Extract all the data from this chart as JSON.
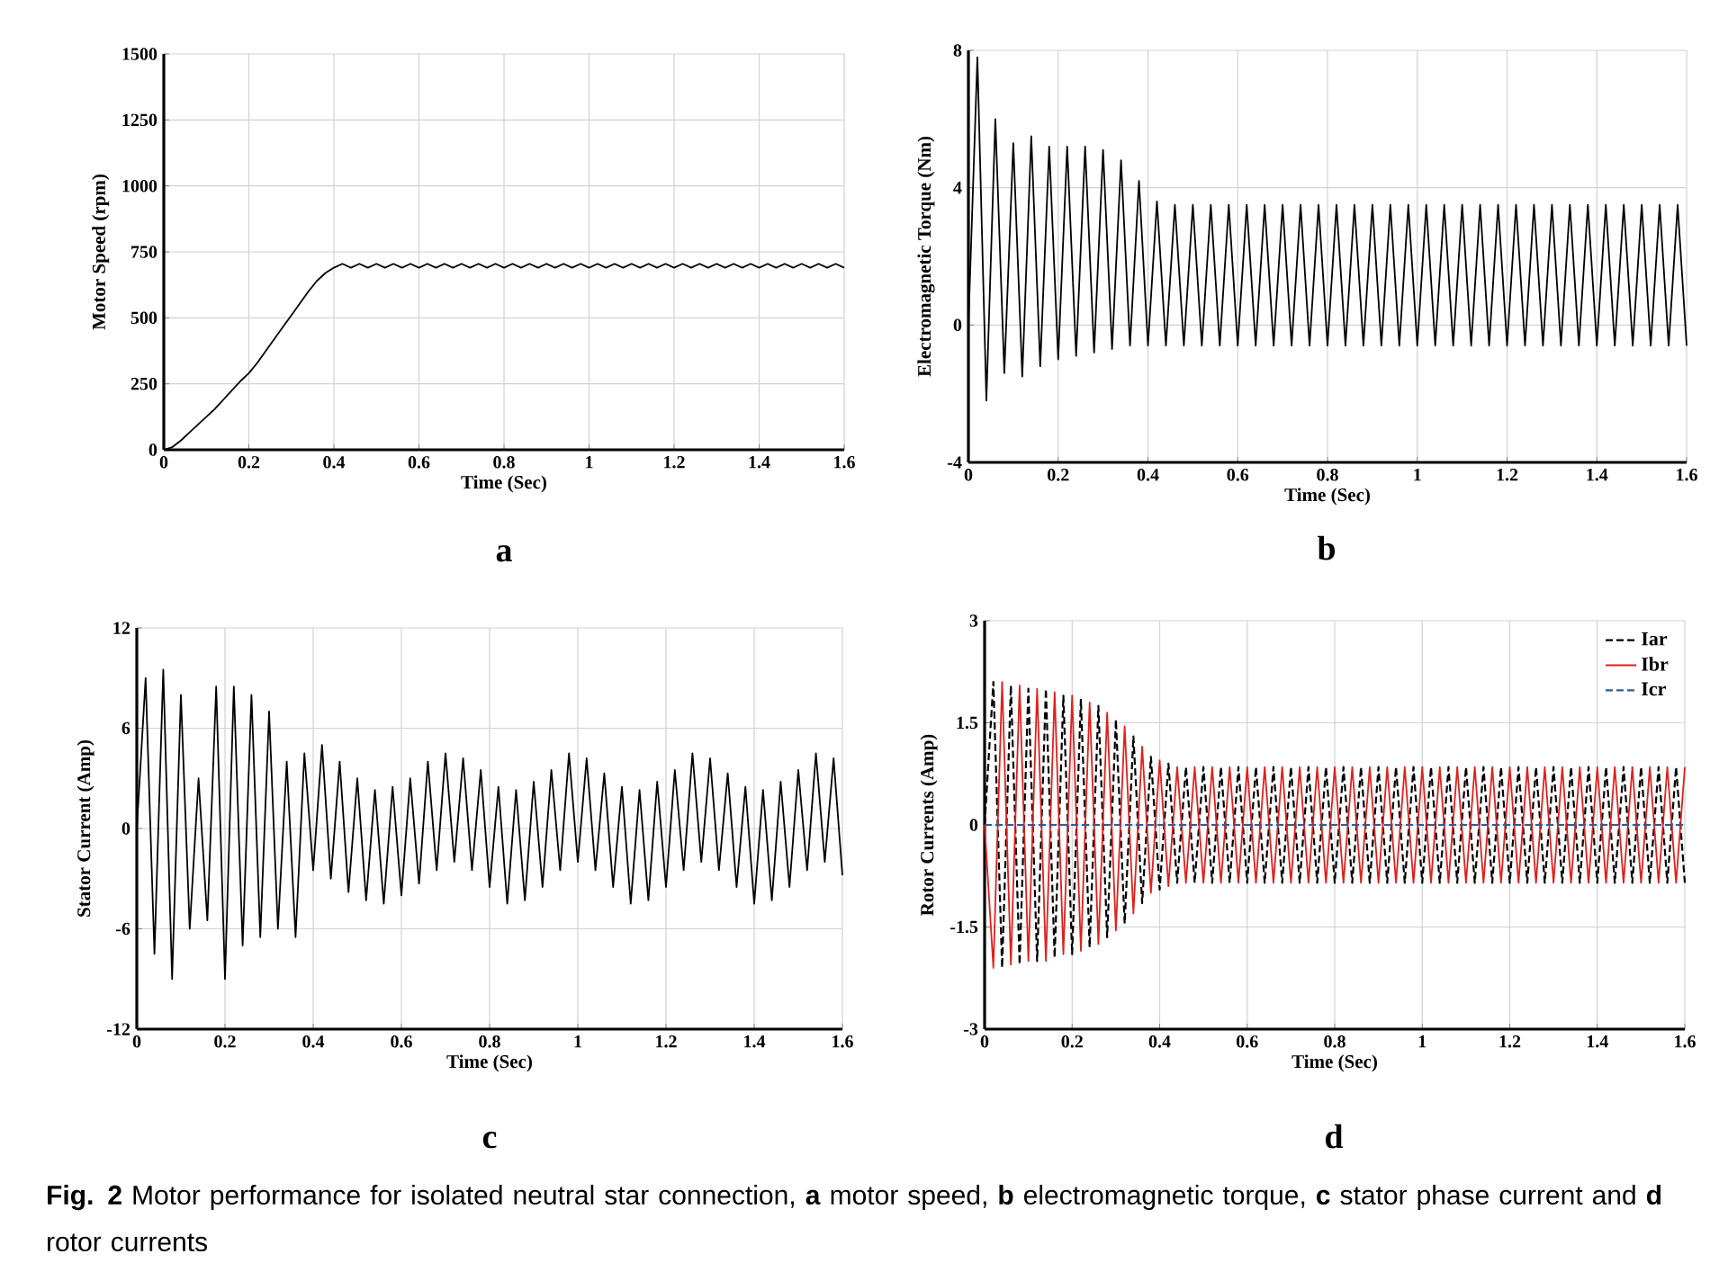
{
  "chart_data": [
    {
      "type": "line",
      "title": "a",
      "xlabel": "Time (Sec)",
      "ylabel": "Motor Speed (rpm)",
      "grid": true,
      "xlim": [
        0,
        1.6
      ],
      "ylim": [
        0,
        1500
      ],
      "xticks": [
        0,
        0.2,
        0.4,
        0.6,
        0.8,
        1,
        1.2,
        1.4,
        1.6
      ],
      "yticks": [
        0,
        250,
        500,
        750,
        1000,
        1250,
        1500
      ],
      "annotations": [
        "**Fig. 2**  Motor performance for isolated neutral star connection, **a** motor speed, **b** electromagnetic torque, **c** stator phase current and **d** rotor currents"
      ],
      "x": [
        0,
        0.02,
        0.04,
        0.06,
        0.08,
        0.1,
        0.12,
        0.14,
        0.16,
        0.18,
        0.2,
        0.22,
        0.24,
        0.26,
        0.28,
        0.3,
        0.32,
        0.34,
        0.36,
        0.38,
        0.4,
        0.42,
        0.44,
        0.46,
        0.48,
        0.5,
        0.52,
        0.54,
        0.56,
        0.58,
        0.6,
        0.62,
        0.64,
        0.66,
        0.68,
        0.7,
        0.72,
        0.74,
        0.76,
        0.78,
        0.8,
        0.82,
        0.84,
        0.86,
        0.88,
        0.9,
        0.92,
        0.94,
        0.96,
        0.98,
        1,
        1.02,
        1.04,
        1.06,
        1.08,
        1.1,
        1.12,
        1.14,
        1.16,
        1.18,
        1.2,
        1.22,
        1.24,
        1.26,
        1.28,
        1.3,
        1.32,
        1.34,
        1.36,
        1.38,
        1.4,
        1.42,
        1.44,
        1.46,
        1.48,
        1.5,
        1.52,
        1.54,
        1.56,
        1.58,
        1.6
      ],
      "series": [
        {
          "color": "#000000",
          "line_style": "solid",
          "values": [
            0,
            10,
            35,
            65,
            95,
            125,
            155,
            190,
            225,
            260,
            290,
            330,
            375,
            420,
            465,
            510,
            555,
            600,
            640,
            670,
            690,
            705,
            690,
            705,
            690,
            705,
            690,
            705,
            690,
            705,
            690,
            705,
            690,
            705,
            690,
            705,
            690,
            705,
            690,
            705,
            690,
            705,
            690,
            705,
            690,
            705,
            690,
            705,
            690,
            705,
            690,
            705,
            690,
            705,
            690,
            705,
            690,
            705,
            690,
            705,
            690,
            705,
            690,
            705,
            690,
            705,
            690,
            705,
            690,
            705,
            690,
            705,
            690,
            705,
            690,
            705,
            690,
            705,
            690,
            705,
            690
          ]
        }
      ]
    },
    {
      "type": "line",
      "title": "b",
      "xlabel": "Time (Sec)",
      "ylabel": "Electromagnetic Torque (Nm)",
      "grid": true,
      "xlim": [
        0,
        1.6
      ],
      "ylim": [
        -4,
        8
      ],
      "xticks": [
        0,
        0.2,
        0.4,
        0.6,
        0.8,
        1,
        1.2,
        1.4,
        1.6
      ],
      "yticks": [
        -4,
        0,
        4,
        8
      ],
      "x": [
        0,
        0.02,
        0.04,
        0.06,
        0.08,
        0.1,
        0.12,
        0.14,
        0.16,
        0.18,
        0.2,
        0.22,
        0.24,
        0.26,
        0.28,
        0.3,
        0.32,
        0.34,
        0.36,
        0.38,
        0.4,
        0.42,
        0.44,
        0.46,
        0.48,
        0.5,
        0.52,
        0.54,
        0.56,
        0.58,
        0.6,
        0.62,
        0.64,
        0.66,
        0.68,
        0.7,
        0.72,
        0.74,
        0.76,
        0.78,
        0.8,
        0.82,
        0.84,
        0.86,
        0.88,
        0.9,
        0.92,
        0.94,
        0.96,
        0.98,
        1,
        1.02,
        1.04,
        1.06,
        1.08,
        1.1,
        1.12,
        1.14,
        1.16,
        1.18,
        1.2,
        1.22,
        1.24,
        1.26,
        1.28,
        1.3,
        1.32,
        1.34,
        1.36,
        1.38,
        1.4,
        1.42,
        1.44,
        1.46,
        1.48,
        1.5,
        1.52,
        1.54,
        1.56,
        1.58,
        1.6
      ],
      "series": [
        {
          "color": "#000000",
          "line_style": "solid",
          "values": [
            0,
            7.8,
            -2.2,
            6,
            -1.4,
            5.3,
            -1.5,
            5.5,
            -1.2,
            5.2,
            -1,
            5.2,
            -0.9,
            5.2,
            -0.8,
            5.1,
            -0.7,
            4.8,
            -0.6,
            4.2,
            -0.6,
            3.6,
            -0.6,
            3.5,
            -0.6,
            3.5,
            -0.6,
            3.5,
            -0.6,
            3.5,
            -0.6,
            3.5,
            -0.6,
            3.5,
            -0.6,
            3.5,
            -0.6,
            3.5,
            -0.6,
            3.5,
            -0.6,
            3.5,
            -0.6,
            3.5,
            -0.6,
            3.5,
            -0.6,
            3.5,
            -0.6,
            3.5,
            -0.6,
            3.5,
            -0.6,
            3.5,
            -0.6,
            3.5,
            -0.6,
            3.5,
            -0.6,
            3.5,
            -0.6,
            3.5,
            -0.6,
            3.5,
            -0.6,
            3.5,
            -0.6,
            3.5,
            -0.6,
            3.5,
            -0.6,
            3.5,
            -0.6,
            3.5,
            -0.6,
            3.5,
            -0.6,
            3.5,
            -0.6,
            3.5,
            -0.6
          ]
        }
      ]
    },
    {
      "type": "line",
      "title": "c",
      "xlabel": "Time (Sec)",
      "ylabel": "Stator Current (Amp)",
      "grid": true,
      "xlim": [
        0,
        1.6
      ],
      "ylim": [
        -12,
        12
      ],
      "xticks": [
        0,
        0.2,
        0.4,
        0.6,
        0.8,
        1,
        1.2,
        1.4,
        1.6
      ],
      "yticks": [
        -12,
        -6,
        0,
        6,
        12
      ],
      "x": [
        0,
        0.02,
        0.04,
        0.06,
        0.08,
        0.1,
        0.12,
        0.14,
        0.16,
        0.18,
        0.2,
        0.22,
        0.24,
        0.26,
        0.28,
        0.3,
        0.32,
        0.34,
        0.36,
        0.38,
        0.4,
        0.42,
        0.44,
        0.46,
        0.48,
        0.5,
        0.52,
        0.54,
        0.56,
        0.58,
        0.6,
        0.62,
        0.64,
        0.66,
        0.68,
        0.7,
        0.72,
        0.74,
        0.76,
        0.78,
        0.8,
        0.82,
        0.84,
        0.86,
        0.88,
        0.9,
        0.92,
        0.94,
        0.96,
        0.98,
        1,
        1.02,
        1.04,
        1.06,
        1.08,
        1.1,
        1.12,
        1.14,
        1.16,
        1.18,
        1.2,
        1.22,
        1.24,
        1.26,
        1.28,
        1.3,
        1.32,
        1.34,
        1.36,
        1.38,
        1.4,
        1.42,
        1.44,
        1.46,
        1.48,
        1.5,
        1.52,
        1.54,
        1.56,
        1.58,
        1.6
      ],
      "series": [
        {
          "color": "#000000",
          "line_style": "solid",
          "values": [
            0,
            9,
            -7.5,
            9.5,
            -9,
            8,
            -6,
            3,
            -5.5,
            8.5,
            -9,
            8.5,
            -7,
            8,
            -6.5,
            7,
            -6,
            4,
            -6.5,
            4.5,
            -2.5,
            5,
            -3,
            4,
            -3.8,
            3,
            -4.3,
            2.3,
            -4.5,
            2.5,
            -4,
            3,
            -3.3,
            4,
            -2.5,
            4.5,
            -2,
            4.2,
            -2.5,
            3.5,
            -3.5,
            2.5,
            -4.5,
            2.3,
            -4.3,
            2.8,
            -3.5,
            3.5,
            -2.5,
            4.5,
            -2,
            4.2,
            -2.5,
            3.3,
            -3.5,
            2.5,
            -4.5,
            2.3,
            -4.3,
            2.8,
            -3.5,
            3.5,
            -2.5,
            4.5,
            -2,
            4.2,
            -2.5,
            3.3,
            -3.5,
            2.5,
            -4.5,
            2.3,
            -4.3,
            2.8,
            -3.5,
            3.5,
            -2.5,
            4.5,
            -2,
            4.2,
            -2.8
          ]
        }
      ]
    },
    {
      "type": "line",
      "title": "d",
      "xlabel": "Time (Sec)",
      "ylabel": "Rotor Currents (Amp)",
      "grid": true,
      "legend": "top right",
      "xlim": [
        0,
        1.6
      ],
      "ylim": [
        -3,
        3
      ],
      "xticks": [
        0,
        0.2,
        0.4,
        0.6,
        0.8,
        1,
        1.2,
        1.4,
        1.6
      ],
      "yticks": [
        -3,
        -1.5,
        0,
        1.5,
        3
      ],
      "x": [
        0,
        0.02,
        0.04,
        0.06,
        0.08,
        0.1,
        0.12,
        0.14,
        0.16,
        0.18,
        0.2,
        0.22,
        0.24,
        0.26,
        0.28,
        0.3,
        0.32,
        0.34,
        0.36,
        0.38,
        0.4,
        0.42,
        0.44,
        0.46,
        0.48,
        0.5,
        0.52,
        0.54,
        0.56,
        0.58,
        0.6,
        0.62,
        0.64,
        0.66,
        0.68,
        0.7,
        0.72,
        0.74,
        0.76,
        0.78,
        0.8,
        0.82,
        0.84,
        0.86,
        0.88,
        0.9,
        0.92,
        0.94,
        0.96,
        0.98,
        1,
        1.02,
        1.04,
        1.06,
        1.08,
        1.1,
        1.12,
        1.14,
        1.16,
        1.18,
        1.2,
        1.22,
        1.24,
        1.26,
        1.28,
        1.3,
        1.32,
        1.34,
        1.36,
        1.38,
        1.4,
        1.42,
        1.44,
        1.46,
        1.48,
        1.5,
        1.52,
        1.54,
        1.56,
        1.58,
        1.6
      ],
      "series": [
        {
          "name": "Iar",
          "color": "#000000",
          "line_style": "dashed",
          "values": [
            0,
            2.1,
            -2.1,
            2.05,
            -2.05,
            2,
            -2,
            2,
            -1.95,
            1.9,
            -1.9,
            1.85,
            -1.8,
            1.75,
            -1.65,
            1.55,
            -1.45,
            1.3,
            -1.15,
            1,
            -0.95,
            0.9,
            -0.85,
            0.85,
            -0.85,
            0.85,
            -0.85,
            0.85,
            -0.85,
            0.85,
            -0.85,
            0.85,
            -0.85,
            0.85,
            -0.85,
            0.85,
            -0.85,
            0.85,
            -0.85,
            0.85,
            -0.85,
            0.85,
            -0.85,
            0.85,
            -0.85,
            0.85,
            -0.85,
            0.85,
            -0.85,
            0.85,
            -0.85,
            0.85,
            -0.85,
            0.85,
            -0.85,
            0.85,
            -0.85,
            0.85,
            -0.85,
            0.85,
            -0.85,
            0.85,
            -0.85,
            0.85,
            -0.85,
            0.85,
            -0.85,
            0.85,
            -0.85,
            0.85,
            -0.85,
            0.85,
            -0.85,
            0.85,
            -0.85,
            0.85,
            -0.85,
            0.85,
            -0.85,
            0.85,
            -0.85
          ]
        },
        {
          "name": "Ibr",
          "color": "#e0201c",
          "line_style": "solid",
          "values": [
            0,
            -2.1,
            2.1,
            -2.05,
            2.05,
            -2,
            2,
            -2,
            1.95,
            -1.9,
            1.9,
            -1.85,
            1.8,
            -1.75,
            1.65,
            -1.55,
            1.45,
            -1.3,
            1.15,
            -1,
            0.95,
            -0.9,
            0.85,
            -0.85,
            0.85,
            -0.85,
            0.85,
            -0.85,
            0.85,
            -0.85,
            0.85,
            -0.85,
            0.85,
            -0.85,
            0.85,
            -0.85,
            0.85,
            -0.85,
            0.85,
            -0.85,
            0.85,
            -0.85,
            0.85,
            -0.85,
            0.85,
            -0.85,
            0.85,
            -0.85,
            0.85,
            -0.85,
            0.85,
            -0.85,
            0.85,
            -0.85,
            0.85,
            -0.85,
            0.85,
            -0.85,
            0.85,
            -0.85,
            0.85,
            -0.85,
            0.85,
            -0.85,
            0.85,
            -0.85,
            0.85,
            -0.85,
            0.85,
            -0.85,
            0.85,
            -0.85,
            0.85,
            -0.85,
            0.85,
            -0.85,
            0.85,
            -0.85,
            0.85,
            -0.85,
            0.85
          ]
        },
        {
          "name": "Icr",
          "color": "#2e5c9a",
          "line_style": "dashed",
          "x": [
            0,
            1.6
          ],
          "values": [
            0,
            0
          ]
        }
      ]
    }
  ]
}
